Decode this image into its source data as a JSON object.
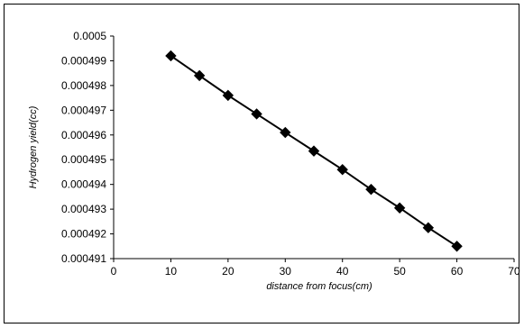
{
  "chart_data": {
    "type": "line",
    "xlabel": "distance from focus(cm)",
    "ylabel": "Hydrogen yield(cc)",
    "xlim": [
      0,
      70
    ],
    "ylim": [
      0.000491,
      0.0005
    ],
    "xticks": [
      "0",
      "10",
      "20",
      "30",
      "40",
      "50",
      "60",
      "70"
    ],
    "yticks": [
      "0.000491",
      "0.000492",
      "0.000493",
      "0.000494",
      "0.000495",
      "0.000496",
      "0.000497",
      "0.000498",
      "0.000499",
      "0.0005"
    ],
    "grid": false,
    "marker": "diamond",
    "series": [
      {
        "x": [
          10,
          15,
          20,
          25,
          30,
          35,
          40,
          45,
          50,
          55,
          60
        ],
        "y": [
          0.0004992,
          0.0004984,
          0.0004976,
          0.00049685,
          0.0004961,
          0.00049535,
          0.0004946,
          0.0004938,
          0.00049305,
          0.00049225,
          0.0004915
        ]
      }
    ],
    "colors": {
      "line": "#000000",
      "marker": "#000000"
    }
  }
}
